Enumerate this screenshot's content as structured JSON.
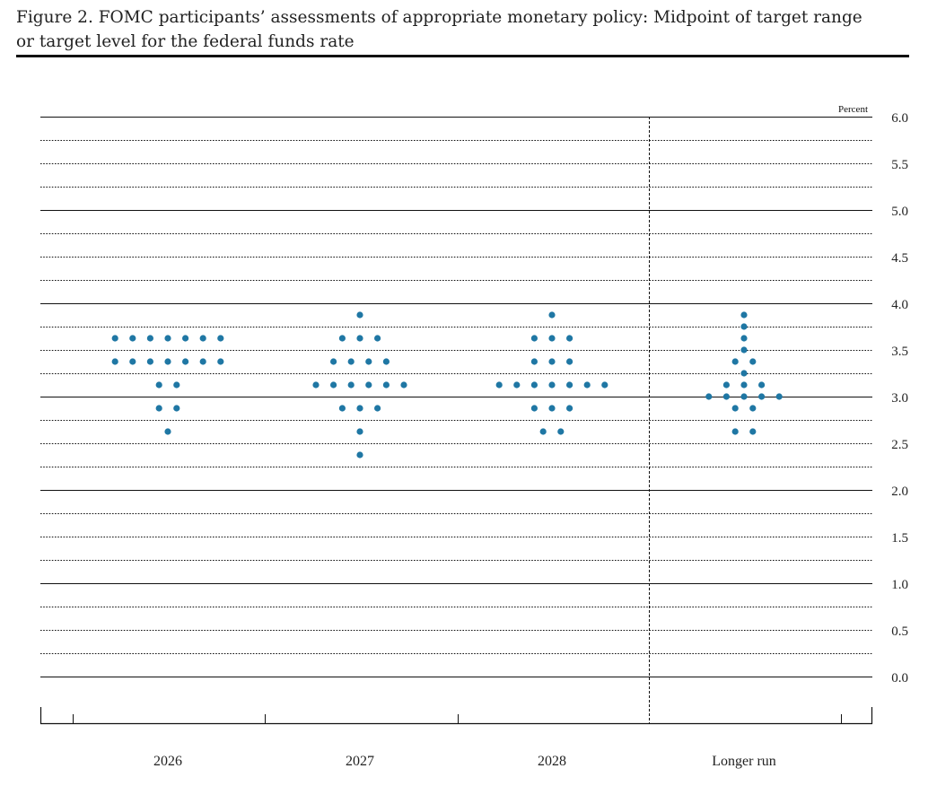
{
  "title_line1": "Figure 2. FOMC participants’ assessments of appropriate monetary policy: Midpoint of target range",
  "title_line2": "or target level for the federal funds rate",
  "chart_data": {
    "type": "scatter",
    "ylabel": "Percent",
    "ylim": [
      0.0,
      6.0
    ],
    "yticks": [
      "0.0",
      "0.5",
      "1.0",
      "1.5",
      "2.0",
      "2.5",
      "3.0",
      "3.5",
      "4.0",
      "4.5",
      "5.0",
      "5.5",
      "6.0"
    ],
    "categories": [
      "2026",
      "2027",
      "2028",
      "Longer run"
    ],
    "dot_color": "#1f77a4",
    "dots": [
      {
        "category": "2026",
        "rates": [
          {
            "value": 3.625,
            "count": 7
          },
          {
            "value": 3.375,
            "count": 7
          },
          {
            "value": 3.125,
            "count": 2
          },
          {
            "value": 2.875,
            "count": 2
          },
          {
            "value": 2.625,
            "count": 1
          }
        ]
      },
      {
        "category": "2027",
        "rates": [
          {
            "value": 3.875,
            "count": 1
          },
          {
            "value": 3.625,
            "count": 3
          },
          {
            "value": 3.375,
            "count": 4
          },
          {
            "value": 3.125,
            "count": 6
          },
          {
            "value": 2.875,
            "count": 3
          },
          {
            "value": 2.625,
            "count": 1
          },
          {
            "value": 2.375,
            "count": 1
          }
        ]
      },
      {
        "category": "2028",
        "rates": [
          {
            "value": 3.875,
            "count": 1
          },
          {
            "value": 3.625,
            "count": 3
          },
          {
            "value": 3.375,
            "count": 3
          },
          {
            "value": 3.125,
            "count": 7
          },
          {
            "value": 2.875,
            "count": 3
          },
          {
            "value": 2.625,
            "count": 2
          }
        ]
      },
      {
        "category": "Longer run",
        "rates": [
          {
            "value": 3.875,
            "count": 1
          },
          {
            "value": 3.75,
            "count": 1
          },
          {
            "value": 3.625,
            "count": 1
          },
          {
            "value": 3.5,
            "count": 1
          },
          {
            "value": 3.375,
            "count": 2
          },
          {
            "value": 3.25,
            "count": 1
          },
          {
            "value": 3.125,
            "count": 3
          },
          {
            "value": 3.0,
            "count": 5
          },
          {
            "value": 2.875,
            "count": 2
          },
          {
            "value": 2.625,
            "count": 2
          }
        ]
      }
    ]
  }
}
